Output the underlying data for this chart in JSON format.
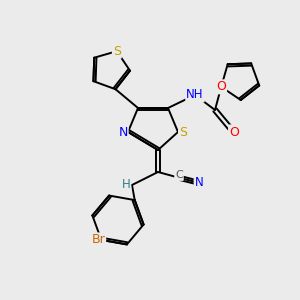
{
  "background_color": "#ebebeb",
  "bond_color": "#000000",
  "atom_colors": {
    "S": "#c8a000",
    "N": "#0000ff",
    "O": "#ff0000",
    "Br": "#cc6600",
    "C_gray": "#555555",
    "H": "#2f8080"
  },
  "figsize": [
    3.0,
    3.0
  ],
  "dpi": 100
}
